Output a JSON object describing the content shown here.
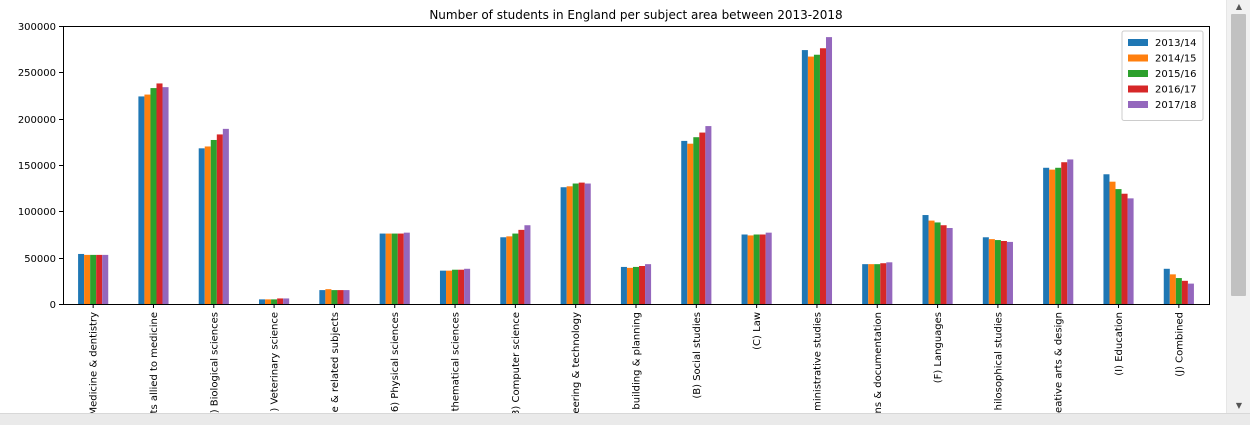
{
  "chart_data": {
    "type": "bar",
    "title": "Number of students in England per subject area between 2013-2018",
    "categories": [
      "Medicine & dentistry",
      "ts allied to medicine",
      ") Biological sciences",
      ") Veterinary science",
      "e & related subjects",
      "6) Physical sciences",
      "thematical sciences",
      "3) Computer science",
      "eering & technology",
      "building & planning",
      "(B) Social studies",
      "(C) Law",
      "ministrative studies",
      "ns & documentation",
      "(F) Languages",
      "hilosophical studies",
      "eative arts & design",
      "(I) Education",
      "(J) Combined"
    ],
    "series": [
      {
        "name": "2013/14",
        "color": "#1f77b4",
        "values": [
          54000,
          224000,
          168000,
          5000,
          15000,
          76000,
          36000,
          72000,
          126000,
          40000,
          176000,
          75000,
          274000,
          43000,
          96000,
          72000,
          147000,
          140000,
          38000
        ]
      },
      {
        "name": "2014/15",
        "color": "#ff7f0e",
        "values": [
          53000,
          226000,
          170000,
          5000,
          16000,
          76000,
          36000,
          73000,
          127000,
          39000,
          173000,
          74000,
          267000,
          43000,
          90000,
          70000,
          145000,
          132000,
          32000
        ]
      },
      {
        "name": "2015/16",
        "color": "#2ca02c",
        "values": [
          53000,
          233000,
          177000,
          5000,
          15000,
          76000,
          37000,
          76000,
          130000,
          40000,
          180000,
          75000,
          269000,
          43000,
          88000,
          69000,
          147000,
          124000,
          28000
        ]
      },
      {
        "name": "2016/17",
        "color": "#d62728",
        "values": [
          53000,
          238000,
          183000,
          6000,
          15000,
          76000,
          37000,
          80000,
          131000,
          41000,
          185000,
          75000,
          276000,
          44000,
          85000,
          68000,
          153000,
          119000,
          25000
        ]
      },
      {
        "name": "2017/18",
        "color": "#9467bd",
        "values": [
          53000,
          234000,
          189000,
          6000,
          15000,
          77000,
          38000,
          85000,
          130000,
          43000,
          192000,
          77000,
          288000,
          45000,
          82000,
          67000,
          156000,
          114000,
          22000
        ]
      }
    ],
    "ylim": [
      0,
      300000
    ],
    "yticks": [
      "0",
      "50000",
      "100000",
      "150000",
      "200000",
      "250000",
      "300000"
    ],
    "legend_position": "top-right",
    "grid": false
  },
  "scrollbar": {
    "up_icon": "triangle-up-icon",
    "down_icon": "triangle-down-icon"
  }
}
